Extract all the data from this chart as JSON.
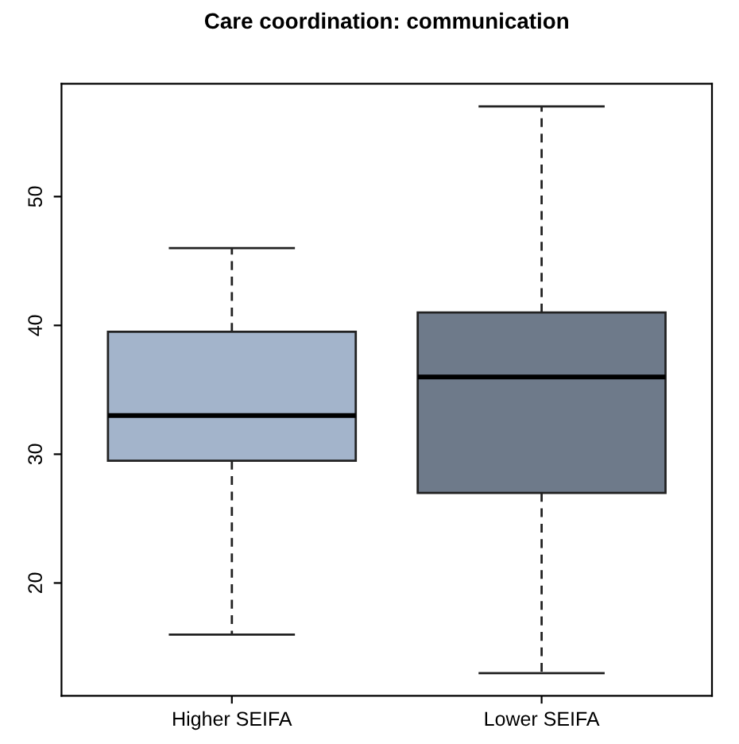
{
  "chart_data": {
    "type": "box",
    "title": "Care coordination: communication",
    "categories": [
      "Higher SEIFA",
      "Lower SEIFA"
    ],
    "colors": [
      "#a3b4cb",
      "#6e7a8a"
    ],
    "boxes": [
      {
        "low": 16,
        "q1": 29.5,
        "median": 33,
        "q3": 39.5,
        "high": 46
      },
      {
        "low": 13,
        "q1": 27,
        "median": 36,
        "q3": 41,
        "high": 57
      }
    ],
    "ylim": [
      11.24,
      58.76
    ],
    "yticks": [
      20,
      30,
      40,
      50
    ],
    "grid": false
  }
}
